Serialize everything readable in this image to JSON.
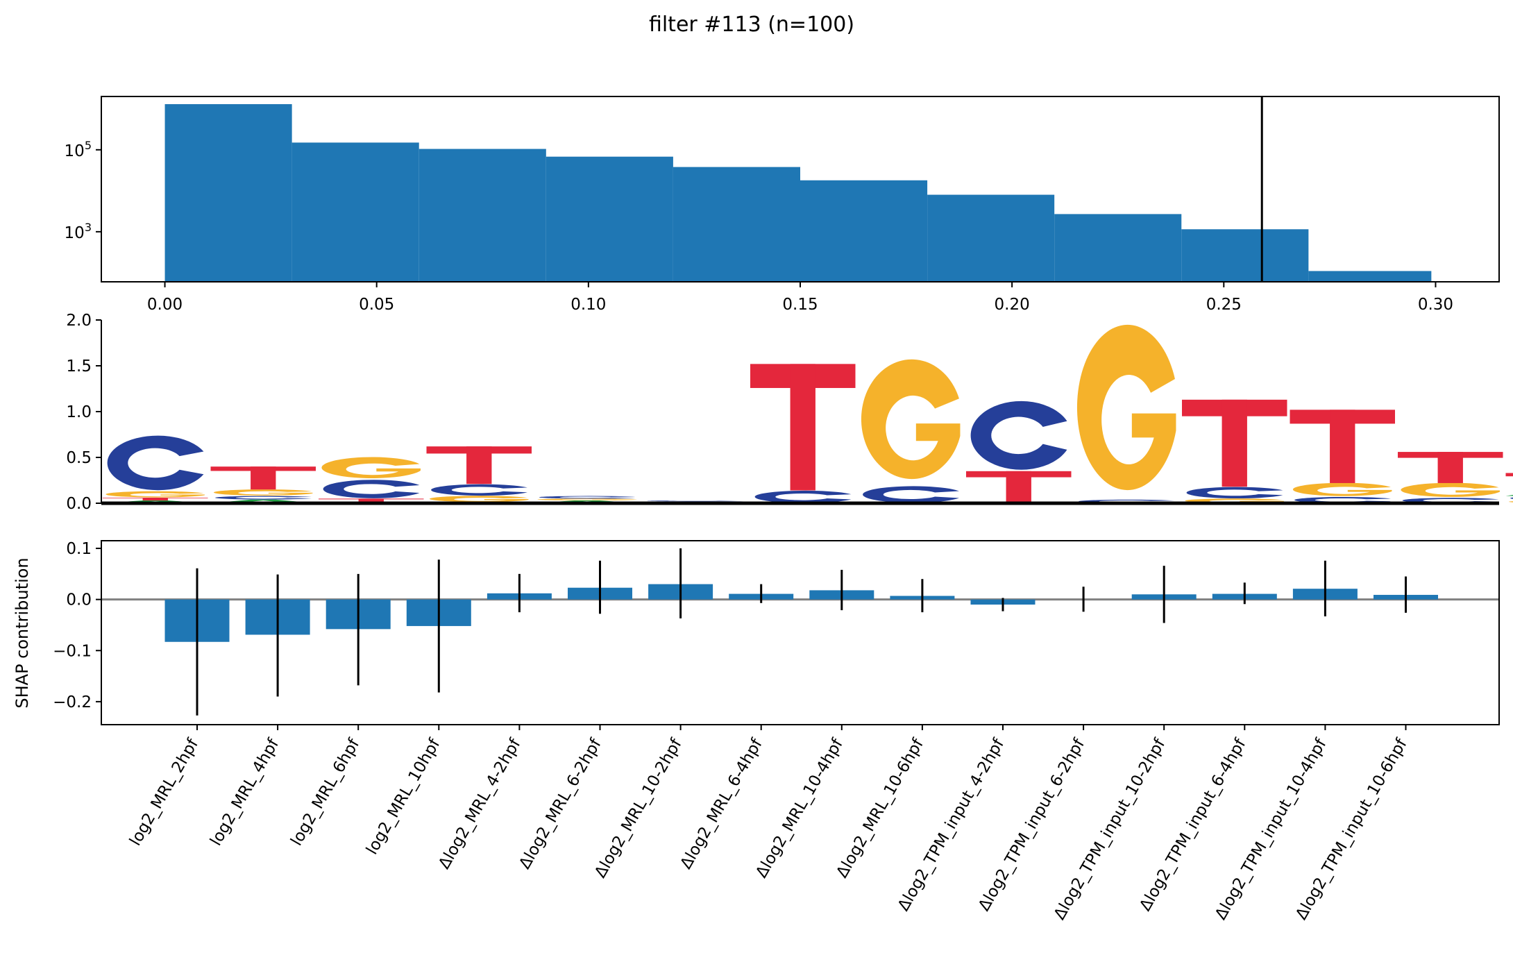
{
  "figure": {
    "title": "filter #113 (n=100)"
  },
  "colors": {
    "bar": "#1f77b4",
    "A": "#21a045",
    "C": "#253f99",
    "G": "#f5b22b",
    "T": "#e4273c",
    "zero_line": "#808080"
  },
  "chart_data": [
    {
      "type": "bar",
      "name": "activation-histogram",
      "yscale": "log",
      "bin_edges": [
        0.0,
        0.03,
        0.06,
        0.09,
        0.12,
        0.15,
        0.18,
        0.21,
        0.24,
        0.27,
        0.299
      ],
      "counts": [
        1300000,
        150000,
        105000,
        68000,
        38000,
        18000,
        8000,
        2700,
        1150,
        110
      ],
      "threshold": 0.259,
      "xlim": [
        -0.015,
        0.315
      ],
      "ylim": [
        60,
        2000000
      ],
      "x_ticks": [
        0.0,
        0.05,
        0.1,
        0.15,
        0.2,
        0.25,
        0.3
      ],
      "x_tick_labels": [
        "0.00",
        "0.05",
        "0.10",
        "0.15",
        "0.20",
        "0.25",
        "0.30"
      ],
      "y_ticks": [
        1000,
        100000
      ],
      "y_tick_labels": [
        {
          "base": "10",
          "exp": "3"
        },
        {
          "base": "10",
          "exp": "5"
        }
      ]
    },
    {
      "type": "sequence-logo",
      "name": "filter-logo",
      "ylim": [
        0,
        2.0
      ],
      "y_ticks": [
        0,
        0.5,
        1.0,
        1.5,
        2.0
      ],
      "y_tick_labels": [
        "0.0",
        "0.5",
        "1.0",
        "1.5",
        "2.0"
      ],
      "positions": [
        [
          [
            "A",
            0.03
          ],
          [
            "T",
            0.03
          ],
          [
            "G",
            0.07
          ],
          [
            "C",
            0.62
          ]
        ],
        [
          [
            "A",
            0.04
          ],
          [
            "C",
            0.04
          ],
          [
            "G",
            0.07
          ],
          [
            "T",
            0.25
          ]
        ],
        [
          [
            "A",
            0.01
          ],
          [
            "T",
            0.04
          ],
          [
            "C",
            0.21
          ],
          [
            "G",
            0.24
          ]
        ],
        [
          [
            "A",
            0.01
          ],
          [
            "G",
            0.07
          ],
          [
            "C",
            0.13
          ],
          [
            "T",
            0.41
          ]
        ],
        [
          [
            "A",
            0.03
          ],
          [
            "G",
            0.02
          ],
          [
            "C",
            0.03
          ]
        ],
        [
          [
            "A",
            0.01
          ],
          [
            "G",
            0.01
          ],
          [
            "C",
            0.01
          ]
        ],
        [
          [
            "C",
            0.14
          ],
          [
            "T",
            1.38
          ]
        ],
        [
          [
            "C",
            0.19
          ],
          [
            "G",
            1.36
          ]
        ],
        [
          [
            "T",
            0.35
          ],
          [
            "C",
            0.78
          ]
        ],
        [
          [
            "C",
            0.04
          ],
          [
            "G",
            1.88
          ]
        ],
        [
          [
            "G",
            0.05
          ],
          [
            "C",
            0.13
          ],
          [
            "T",
            0.95
          ]
        ],
        [
          [
            "C",
            0.07
          ],
          [
            "G",
            0.15
          ],
          [
            "T",
            0.8
          ]
        ],
        [
          [
            "C",
            0.06
          ],
          [
            "G",
            0.16
          ],
          [
            "T",
            0.34
          ]
        ],
        [
          [
            "G",
            0.03
          ],
          [
            "C",
            0.05
          ],
          [
            "A",
            0.06
          ],
          [
            "T",
            0.19
          ]
        ]
      ]
    },
    {
      "type": "bar",
      "name": "shap-contribution",
      "ylabel": "SHAP contribution",
      "ylim": [
        -0.245,
        0.115
      ],
      "y_ticks": [
        -0.2,
        -0.1,
        0.0,
        0.1
      ],
      "y_tick_labels": [
        "−0.2",
        "−0.1",
        "0.0",
        "0.1"
      ],
      "categories": [
        "log2_MRL_2hpf",
        "log2_MRL_4hpf",
        "log2_MRL_6hpf",
        "log2_MRL_10hpf",
        "Δlog2_MRL_4-2hpf",
        "Δlog2_MRL_6-2hpf",
        "Δlog2_MRL_10-2hpf",
        "Δlog2_MRL_6-4hpf",
        "Δlog2_MRL_10-4hpf",
        "Δlog2_MRL_10-6hpf",
        "Δlog2_TPM_input_4-2hpf",
        "Δlog2_TPM_input_6-2hpf",
        "Δlog2_TPM_input_10-2hpf",
        "Δlog2_TPM_input_6-4hpf",
        "Δlog2_TPM_input_10-4hpf",
        "Δlog2_TPM_input_10-6hpf"
      ],
      "values": [
        -0.083,
        -0.069,
        -0.058,
        -0.052,
        0.012,
        0.023,
        0.03,
        0.011,
        0.018,
        0.007,
        -0.01,
        0.0,
        0.01,
        0.011,
        0.021,
        0.009
      ],
      "err_low": [
        -0.227,
        -0.19,
        -0.168,
        -0.182,
        -0.025,
        -0.028,
        -0.037,
        -0.007,
        -0.021,
        -0.025,
        -0.023,
        -0.024,
        -0.046,
        -0.009,
        -0.033,
        -0.026
      ],
      "err_high": [
        0.061,
        0.049,
        0.05,
        0.078,
        0.05,
        0.076,
        0.1,
        0.03,
        0.058,
        0.04,
        0.003,
        0.025,
        0.066,
        0.033,
        0.076,
        0.045
      ]
    }
  ]
}
